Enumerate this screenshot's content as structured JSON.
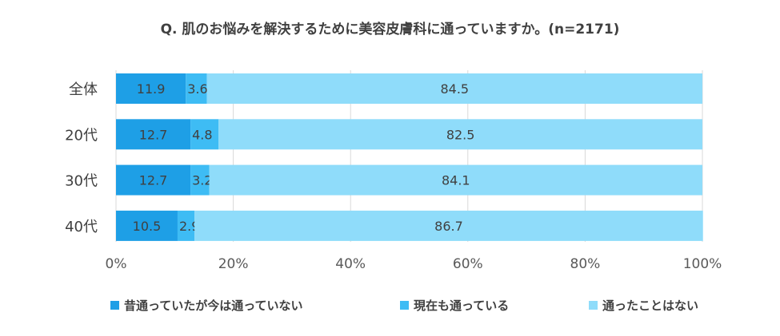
{
  "chart_data": {
    "type": "bar",
    "orientation": "horizontal",
    "stacked": true,
    "title": "Q. 肌のお悩みを解決するために美容皮膚科に通っていますか。(n=2171)",
    "categories": [
      "全体",
      "20代",
      "30代",
      "40代"
    ],
    "series": [
      {
        "name": "昔通っていたが今は通っていない",
        "color": "#1e9fe6",
        "values": [
          11.9,
          12.7,
          12.7,
          10.5
        ]
      },
      {
        "name": "現在も通っている",
        "color": "#3ebcf4",
        "values": [
          3.6,
          4.8,
          3.2,
          2.9
        ]
      },
      {
        "name": "通ったことはない",
        "color": "#8fdcfa",
        "values": [
          84.5,
          82.5,
          84.1,
          86.7
        ]
      }
    ],
    "xlim": [
      0,
      100
    ],
    "xticks": [
      "0%",
      "20%",
      "40%",
      "60%",
      "80%",
      "100%"
    ],
    "grid": true,
    "legend_position": "bottom"
  }
}
